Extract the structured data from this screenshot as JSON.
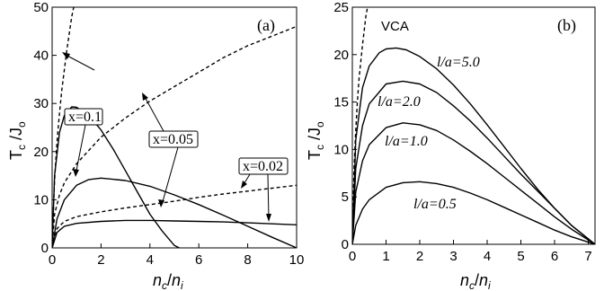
{
  "chart_data": [
    {
      "type": "line",
      "panel_label": "(a)",
      "xlabel": "n_c/n_i",
      "ylabel": "T_c /J_o",
      "xlim": [
        0,
        10
      ],
      "ylim": [
        0,
        50
      ],
      "xticks": [
        0,
        2,
        4,
        6,
        8,
        10
      ],
      "yticks": [
        0,
        10,
        20,
        30,
        40,
        50
      ],
      "grid": false,
      "series": [
        {
          "name": "x=0.1",
          "style": "solid",
          "x": [
            0,
            0.1,
            0.3,
            0.5,
            0.8,
            1.0,
            1.5,
            2.0,
            2.5,
            3.0,
            3.5,
            4.0,
            4.5,
            5.0,
            5.2
          ],
          "y": [
            0,
            15,
            24,
            27.5,
            29.3,
            29.2,
            27.5,
            24.5,
            20.5,
            16,
            11.5,
            7,
            3.5,
            0.5,
            0
          ]
        },
        {
          "name": "x=0.1",
          "style": "dashed",
          "x": [
            0,
            0.05,
            0.1,
            0.2,
            0.3,
            0.4,
            0.5,
            0.6,
            0.8,
            1.0
          ],
          "y": [
            0,
            8,
            14,
            22,
            28,
            33,
            37,
            41,
            48,
            53
          ]
        },
        {
          "name": "x=0.05",
          "style": "solid",
          "x": [
            0,
            0.2,
            0.5,
            1.0,
            1.5,
            2.0,
            3.0,
            4.0,
            5.0,
            6.0,
            7.0,
            8.0,
            9.0,
            10.0
          ],
          "y": [
            0,
            6,
            10,
            13,
            14.2,
            14.5,
            14,
            12.8,
            11,
            9,
            6.8,
            4.5,
            2.2,
            0
          ]
        },
        {
          "name": "x=0.05",
          "style": "dashed",
          "x": [
            0,
            0.1,
            0.3,
            0.5,
            1.0,
            2.0,
            3.0,
            4.0,
            5.0,
            6.0,
            7.0,
            8.0,
            9.0,
            10.0
          ],
          "y": [
            0,
            7,
            11,
            13.5,
            17.5,
            23,
            27,
            30.5,
            33.5,
            36.5,
            39.5,
            42,
            44,
            46
          ]
        },
        {
          "name": "x=0.02",
          "style": "solid",
          "x": [
            0,
            0.2,
            0.5,
            1.0,
            2.0,
            3.0,
            4.0,
            5.0,
            6.0,
            7.0,
            8.0,
            9.0,
            10.0
          ],
          "y": [
            0,
            3.2,
            4.5,
            5.1,
            5.5,
            5.7,
            5.7,
            5.6,
            5.5,
            5.4,
            5.2,
            5.0,
            4.8
          ]
        },
        {
          "name": "x=0.02",
          "style": "dashed",
          "x": [
            0,
            0.2,
            0.5,
            1.0,
            2.0,
            3.0,
            4.0,
            5.0,
            6.0,
            7.0,
            8.0,
            9.0,
            10.0
          ],
          "y": [
            0,
            4,
            5.5,
            6.5,
            7.5,
            8.3,
            9.0,
            9.7,
            10.5,
            11.2,
            11.8,
            12.4,
            13
          ]
        }
      ],
      "annotations": [
        "x=0.1",
        "x=0.05",
        "x=0.02"
      ]
    },
    {
      "type": "line",
      "panel_label": "(b)",
      "xlabel": "n_c/n_i",
      "ylabel": "T_c /J_o",
      "xlim": [
        0,
        7.2
      ],
      "ylim": [
        0,
        25
      ],
      "xticks": [
        0,
        1,
        2,
        3,
        4,
        5,
        6,
        7
      ],
      "yticks": [
        0,
        5,
        10,
        15,
        20,
        25
      ],
      "grid": false,
      "series": [
        {
          "name": "VCA",
          "style": "dashed",
          "x": [
            0,
            0.05,
            0.1,
            0.15,
            0.2,
            0.3,
            0.4,
            0.5
          ],
          "y": [
            0,
            8,
            12,
            15,
            17.5,
            21,
            24,
            26
          ]
        },
        {
          "name": "l/a=5.0",
          "style": "solid",
          "x": [
            0,
            0.1,
            0.3,
            0.5,
            0.8,
            1.0,
            1.3,
            1.6,
            2.0,
            2.5,
            3.0,
            3.5,
            4.0,
            4.5,
            5.0,
            5.5,
            6.0,
            6.5,
            7.2
          ],
          "y": [
            0,
            11,
            16.5,
            18.8,
            20.2,
            20.6,
            20.7,
            20.5,
            19.8,
            18.5,
            16.8,
            14.8,
            12.6,
            10.3,
            8.0,
            5.8,
            3.8,
            2.0,
            0
          ]
        },
        {
          "name": "l/a=2.0",
          "style": "solid",
          "x": [
            0,
            0.1,
            0.3,
            0.5,
            1.0,
            1.5,
            2.0,
            2.5,
            3.0,
            3.5,
            4.0,
            4.5,
            5.0,
            5.5,
            6.0,
            6.5,
            7.2
          ],
          "y": [
            0,
            8,
            12.5,
            14.8,
            16.9,
            17.2,
            16.9,
            16.0,
            14.6,
            13.0,
            11.2,
            9.3,
            7.4,
            5.6,
            3.8,
            2.0,
            0
          ]
        },
        {
          "name": "l/a=1.0",
          "style": "solid",
          "x": [
            0,
            0.1,
            0.3,
            0.5,
            1.0,
            1.5,
            2.0,
            2.5,
            3.0,
            3.5,
            4.0,
            4.5,
            5.0,
            5.5,
            6.0,
            6.5,
            7.2
          ],
          "y": [
            0,
            5.5,
            8.8,
            10.5,
            12.3,
            12.8,
            12.6,
            12.0,
            11.0,
            9.8,
            8.5,
            7.1,
            5.7,
            4.3,
            2.9,
            1.6,
            0
          ]
        },
        {
          "name": "l/a=0.5",
          "style": "solid",
          "x": [
            0,
            0.1,
            0.3,
            0.5,
            1.0,
            1.5,
            2.0,
            2.5,
            3.0,
            3.5,
            4.0,
            4.5,
            5.0,
            5.5,
            6.0,
            6.5,
            7.2
          ],
          "y": [
            0,
            2.0,
            3.7,
            4.7,
            6.0,
            6.5,
            6.6,
            6.4,
            6.0,
            5.4,
            4.7,
            3.9,
            3.1,
            2.3,
            1.5,
            0.8,
            0
          ]
        }
      ],
      "annotations": [
        "VCA",
        "l/a=5.0",
        "l/a=2.0",
        "l/a=1.0",
        "l/a=0.5"
      ]
    }
  ]
}
